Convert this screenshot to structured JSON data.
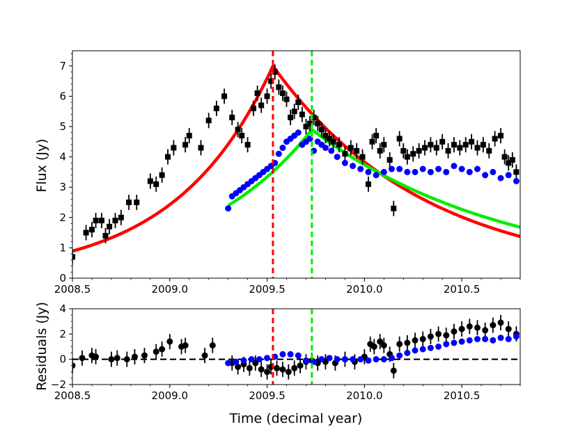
{
  "chart_data": {
    "type": "scatter",
    "xlabel": "Time (decimal year)",
    "xlim": [
      2008.5,
      2010.8
    ],
    "x_ticks": [
      "2008.5",
      "2009.0",
      "2009.5",
      "2010.0",
      "2010.5"
    ],
    "x_tick_values": [
      2008.5,
      2009.0,
      2009.5,
      2010.0,
      2010.5
    ],
    "vlines": [
      {
        "name": "red-peak",
        "x": 2009.53,
        "color": "#ff0000"
      },
      {
        "name": "green-peak",
        "x": 2009.73,
        "color": "#00ee00"
      }
    ],
    "panels": [
      {
        "name": "flux",
        "ylabel": "Flux (Jy)",
        "ylim": [
          0,
          7.5
        ],
        "y_ticks": [
          "0",
          "1",
          "2",
          "3",
          "4",
          "5",
          "6",
          "7"
        ],
        "y_tick_values": [
          0,
          1,
          2,
          3,
          4,
          5,
          6,
          7
        ],
        "series": [
          {
            "name": "black-squares",
            "marker": "square",
            "color": "#000000",
            "x": [
              2008.5,
              2008.57,
              2008.6,
              2008.62,
              2008.65,
              2008.67,
              2008.69,
              2008.72,
              2008.75,
              2008.79,
              2008.83,
              2008.9,
              2008.93,
              2008.96,
              2008.99,
              2009.02,
              2009.08,
              2009.1,
              2009.16,
              2009.2,
              2009.24,
              2009.28,
              2009.32,
              2009.35,
              2009.37,
              2009.4,
              2009.43,
              2009.45,
              2009.47,
              2009.5,
              2009.52,
              2009.54,
              2009.56,
              2009.58,
              2009.6,
              2009.62,
              2009.64,
              2009.66,
              2009.68,
              2009.7,
              2009.72,
              2009.74,
              2009.76,
              2009.78,
              2009.8,
              2009.82,
              2009.84,
              2009.87,
              2009.9,
              2009.93,
              2009.96,
              2009.99,
              2010.02,
              2010.04,
              2010.06,
              2010.08,
              2010.1,
              2010.13,
              2010.15,
              2010.18,
              2010.2,
              2010.22,
              2010.25,
              2010.28,
              2010.31,
              2010.34,
              2010.37,
              2010.4,
              2010.43,
              2010.46,
              2010.49,
              2010.52,
              2010.55,
              2010.58,
              2010.61,
              2010.64,
              2010.67,
              2010.7,
              2010.72,
              2010.74,
              2010.76,
              2010.78
            ],
            "values": [
              0.7,
              1.5,
              1.6,
              1.9,
              1.9,
              1.4,
              1.7,
              1.9,
              2.0,
              2.5,
              2.5,
              3.2,
              3.1,
              3.4,
              4.0,
              4.3,
              4.4,
              4.7,
              4.3,
              5.2,
              5.6,
              6.0,
              5.3,
              4.9,
              4.7,
              4.4,
              5.6,
              6.1,
              5.7,
              6.0,
              6.5,
              6.8,
              6.3,
              6.1,
              5.9,
              5.3,
              5.5,
              5.8,
              5.4,
              5.0,
              5.1,
              5.3,
              5.1,
              4.9,
              4.7,
              4.6,
              4.5,
              4.4,
              4.1,
              4.3,
              4.2,
              4.0,
              3.1,
              4.5,
              4.7,
              4.2,
              4.4,
              3.9,
              2.3,
              4.6,
              4.2,
              4.0,
              4.1,
              4.2,
              4.3,
              4.4,
              4.3,
              4.5,
              4.2,
              4.4,
              4.3,
              4.4,
              4.5,
              4.3,
              4.4,
              4.2,
              4.6,
              4.7,
              4.0,
              3.8,
              3.9,
              3.5
            ]
          },
          {
            "name": "blue-points",
            "marker": "circle",
            "color": "#0000ff",
            "x": [
              2009.3,
              2009.32,
              2009.34,
              2009.36,
              2009.38,
              2009.4,
              2009.42,
              2009.44,
              2009.46,
              2009.48,
              2009.5,
              2009.52,
              2009.54,
              2009.56,
              2009.58,
              2009.6,
              2009.62,
              2009.64,
              2009.66,
              2009.68,
              2009.7,
              2009.72,
              2009.74,
              2009.76,
              2009.78,
              2009.8,
              2009.83,
              2009.86,
              2009.9,
              2009.94,
              2009.98,
              2010.02,
              2010.06,
              2010.1,
              2010.14,
              2010.18,
              2010.22,
              2010.26,
              2010.3,
              2010.34,
              2010.38,
              2010.42,
              2010.46,
              2010.5,
              2010.54,
              2010.58,
              2010.62,
              2010.66,
              2010.7,
              2010.74,
              2010.78
            ],
            "values": [
              2.3,
              2.7,
              2.8,
              2.9,
              3.0,
              3.1,
              3.2,
              3.3,
              3.4,
              3.5,
              3.6,
              3.7,
              3.8,
              4.1,
              4.3,
              4.5,
              4.6,
              4.7,
              4.8,
              4.4,
              4.5,
              4.6,
              4.2,
              4.5,
              4.4,
              4.3,
              4.2,
              4.0,
              3.8,
              3.7,
              3.6,
              3.5,
              3.4,
              3.5,
              3.6,
              3.6,
              3.5,
              3.5,
              3.6,
              3.5,
              3.6,
              3.5,
              3.7,
              3.6,
              3.5,
              3.6,
              3.4,
              3.5,
              3.3,
              3.4,
              3.2
            ]
          }
        ],
        "curves": [
          {
            "name": "red-model",
            "color": "#ff0000",
            "start": 2008.5,
            "peak_x": 2009.53,
            "peak_y": 7.0,
            "rise_tau": 0.5,
            "decay_tau": 0.78,
            "end": 2010.8
          },
          {
            "name": "green-model",
            "color": "#00ee00",
            "start": 2009.3,
            "peak_x": 2009.73,
            "peak_y": 4.9,
            "rise_tau": 0.6,
            "decay_tau": 1.0,
            "end": 2010.8
          }
        ]
      },
      {
        "name": "residuals",
        "ylabel": "Residuals (Jy)",
        "ylim": [
          -2,
          4
        ],
        "y_ticks": [
          "−2",
          "0",
          "2",
          "4"
        ],
        "y_tick_values": [
          -2,
          0,
          2,
          4
        ],
        "zero_line": true,
        "series": [
          {
            "name": "black-residuals",
            "marker": "circle",
            "color": "#000000",
            "x": [
              2008.5,
              2008.55,
              2008.6,
              2008.62,
              2008.7,
              2008.73,
              2008.78,
              2008.82,
              2008.87,
              2008.93,
              2008.96,
              2009.0,
              2009.06,
              2009.08,
              2009.18,
              2009.22,
              2009.32,
              2009.35,
              2009.38,
              2009.41,
              2009.44,
              2009.47,
              2009.5,
              2009.52,
              2009.55,
              2009.58,
              2009.61,
              2009.64,
              2009.67,
              2009.7,
              2009.73,
              2009.76,
              2009.8,
              2009.85,
              2009.9,
              2009.95,
              2010.0,
              2010.03,
              2010.05,
              2010.08,
              2010.1,
              2010.13,
              2010.15,
              2010.18,
              2010.22,
              2010.26,
              2010.3,
              2010.34,
              2010.38,
              2010.42,
              2010.46,
              2010.5,
              2010.54,
              2010.58,
              2010.62,
              2010.66,
              2010.7,
              2010.74,
              2010.78
            ],
            "values": [
              -0.5,
              0.1,
              0.3,
              0.2,
              0.0,
              0.1,
              0.0,
              0.2,
              0.3,
              0.6,
              0.8,
              1.4,
              1.0,
              1.1,
              0.3,
              1.1,
              -0.3,
              -0.6,
              -0.4,
              -0.7,
              -0.3,
              -0.8,
              -1.0,
              -0.6,
              -0.7,
              -0.8,
              -1.0,
              -0.7,
              -0.5,
              -0.2,
              -0.1,
              -0.3,
              -0.2,
              -0.3,
              0.0,
              -0.2,
              0.2,
              1.2,
              1.0,
              1.4,
              1.1,
              0.4,
              -0.9,
              1.2,
              1.3,
              1.5,
              1.6,
              1.8,
              2.0,
              1.9,
              2.2,
              2.4,
              2.6,
              2.5,
              2.3,
              2.7,
              2.9,
              2.4,
              2.0
            ]
          },
          {
            "name": "blue-residuals",
            "marker": "circle",
            "color": "#0000ff",
            "x": [
              2009.3,
              2009.34,
              2009.38,
              2009.42,
              2009.46,
              2009.5,
              2009.54,
              2009.58,
              2009.62,
              2009.66,
              2009.7,
              2009.74,
              2009.78,
              2009.82,
              2009.86,
              2009.9,
              2009.94,
              2009.98,
              2010.02,
              2010.06,
              2010.1,
              2010.14,
              2010.18,
              2010.22,
              2010.26,
              2010.3,
              2010.34,
              2010.38,
              2010.42,
              2010.46,
              2010.5,
              2010.54,
              2010.58,
              2010.62,
              2010.66,
              2010.7,
              2010.74,
              2010.78
            ],
            "values": [
              -0.3,
              -0.2,
              -0.1,
              0.0,
              0.0,
              0.1,
              0.2,
              0.4,
              0.4,
              0.3,
              -0.1,
              -0.2,
              0.0,
              0.1,
              0.0,
              0.0,
              0.0,
              0.0,
              -0.1,
              0.0,
              0.0,
              0.1,
              0.3,
              0.5,
              0.7,
              0.8,
              0.9,
              1.0,
              1.2,
              1.3,
              1.4,
              1.5,
              1.6,
              1.6,
              1.5,
              1.7,
              1.6,
              1.8
            ]
          }
        ]
      }
    ]
  }
}
